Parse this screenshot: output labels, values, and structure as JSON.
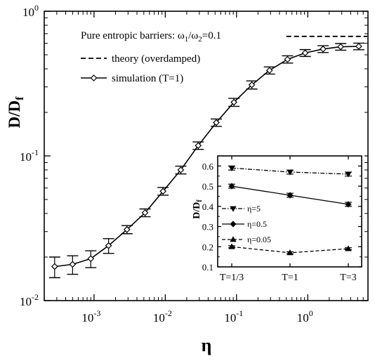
{
  "chart_data": [
    {
      "type": "line",
      "title": "",
      "xlabel": "η",
      "ylabel": "D/D",
      "ylabel_sub": "f",
      "xscale": "log",
      "yscale": "log",
      "xlim": [
        0.0002,
        7
      ],
      "ylim": [
        0.01,
        1
      ],
      "xticks": [
        {
          "base": "10",
          "exp": "-3",
          "value": 0.001
        },
        {
          "base": "10",
          "exp": "-2",
          "value": 0.01
        },
        {
          "base": "10",
          "exp": "-1",
          "value": 0.1
        },
        {
          "base": "10",
          "exp": "0",
          "value": 1
        }
      ],
      "yticks": [
        {
          "base": "10",
          "exp": "-2",
          "value": 0.01
        },
        {
          "base": "10",
          "exp": "-1",
          "value": 0.1
        },
        {
          "base": "10",
          "exp": "0",
          "value": 1
        }
      ],
      "annotation": {
        "pre": "Pure entropic barriers: ω",
        "sub1": "1",
        "mid": "/ω",
        "sub2": "2",
        "post": "=0.1"
      },
      "legend_position": "top-left",
      "series": [
        {
          "name": "theory (overdamped)",
          "style": "dashed",
          "x": [
            0.5,
            7
          ],
          "y": [
            0.67,
            0.67
          ]
        },
        {
          "name": "simulation (T=1)",
          "style": "solid-open-diamond",
          "x": [
            0.00028,
            0.0005,
            0.0009,
            0.0016,
            0.0029,
            0.0052,
            0.0093,
            0.0165,
            0.029,
            0.052,
            0.092,
            0.164,
            0.29,
            0.52,
            0.92,
            1.64,
            2.9,
            5.2
          ],
          "y": [
            0.0172,
            0.0178,
            0.0195,
            0.024,
            0.031,
            0.0405,
            0.057,
            0.08,
            0.118,
            0.17,
            0.235,
            0.31,
            0.39,
            0.465,
            0.515,
            0.548,
            0.568,
            0.572
          ],
          "err": [
            0.0028,
            0.0026,
            0.0026,
            0.0028,
            0.002,
            0.0025,
            0.0035,
            0.005,
            0.007,
            0.01,
            0.015,
            0.02,
            0.022,
            0.027,
            0.028,
            0.03,
            0.03,
            0.03
          ]
        }
      ]
    },
    {
      "type": "line",
      "title": "",
      "xlabel": "",
      "ylabel": "D/D",
      "ylabel_sub": "f",
      "categories": [
        "T=1/3",
        "T=1",
        "T=3"
      ],
      "ylim": [
        0.1,
        0.65
      ],
      "yticks": [
        "0.1",
        "0.2",
        "0.3",
        "0.4",
        "0.5",
        "0.6"
      ],
      "legend_position": "center-left",
      "series": [
        {
          "name": "η=5",
          "style": "dashdot",
          "marker": "triangle-down",
          "values": [
            0.59,
            0.57,
            0.56
          ],
          "err": [
            0.01,
            0.01,
            0.01
          ]
        },
        {
          "name": "η=0.5",
          "style": "solid",
          "marker": "diamond",
          "values": [
            0.5,
            0.455,
            0.41
          ],
          "err": [
            0.01,
            0.01,
            0.01
          ]
        },
        {
          "name": "η=0.05",
          "style": "dashed",
          "marker": "triangle-up",
          "values": [
            0.2,
            0.17,
            0.19
          ],
          "err": [
            0.005,
            0.005,
            0.005
          ]
        }
      ]
    }
  ]
}
